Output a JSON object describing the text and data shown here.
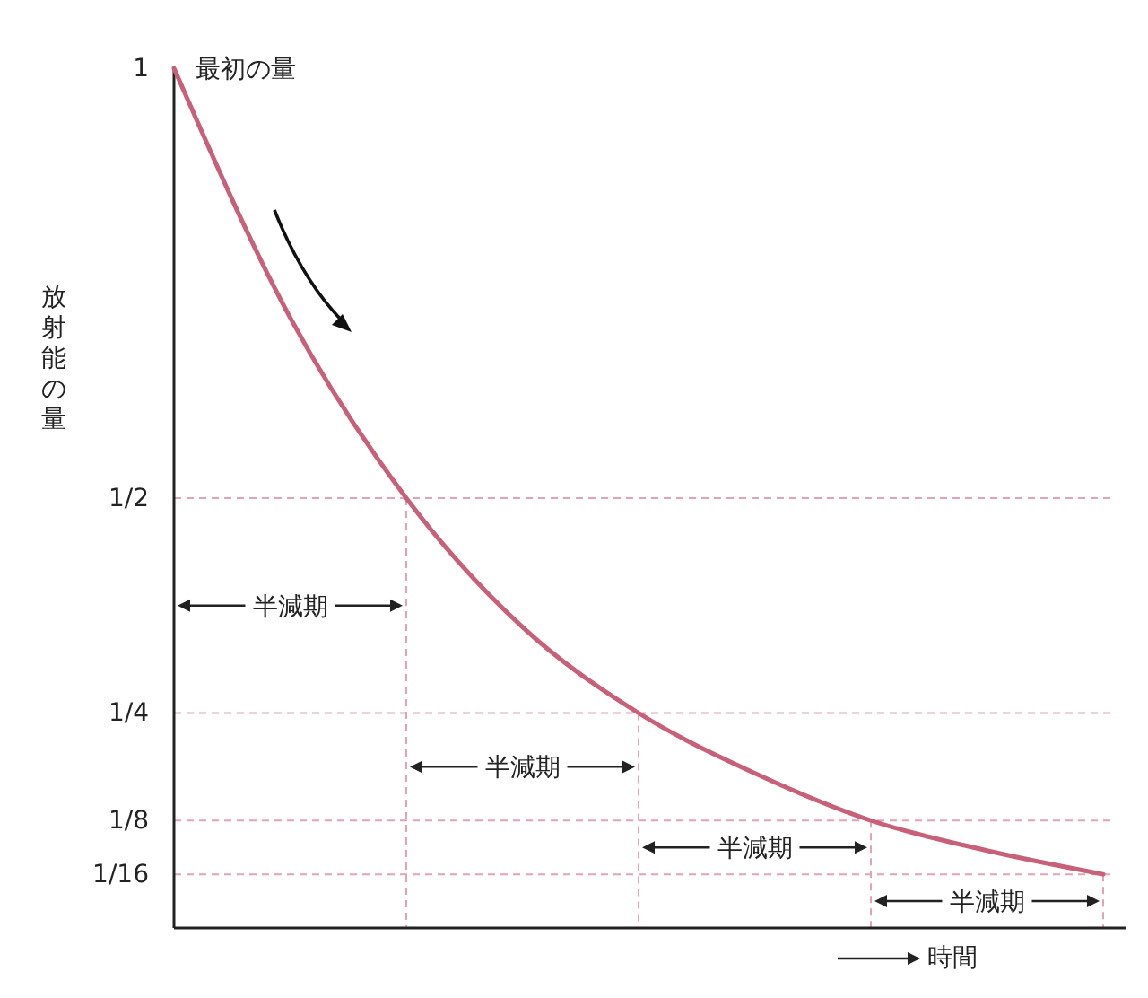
{
  "chart_data": {
    "type": "line",
    "ylabel": "放射能の量",
    "xlabel": "時間",
    "categories": [
      null,
      null,
      null,
      null,
      null,
      null,
      null,
      null,
      null
    ],
    "series": [
      {
        "color": "#c8607a",
        "values": [
          1,
          0.71,
          0.5,
          0.35,
          0.25,
          0.18,
          0.125,
          0.09,
          0.0625
        ]
      }
    ],
    "ylim": [
      0,
      1
    ],
    "yticks": [
      {
        "value": 1,
        "label": "1"
      },
      {
        "value": 0.5,
        "label": "1/2"
      },
      {
        "value": 0.25,
        "label": "1/4"
      },
      {
        "value": 0.125,
        "label": "1/8"
      },
      {
        "value": 0.0625,
        "label": "1/16"
      }
    ],
    "tick_labels": "y",
    "marker": "none",
    "line_style": "solid",
    "ref_lines": [
      {
        "axis": "y",
        "value": 0.5,
        "color": "#e3a3b3",
        "line_style": "dashed"
      },
      {
        "axis": "y",
        "value": 0.25,
        "color": "#e3a3b3",
        "line_style": "dashed"
      },
      {
        "axis": "y",
        "value": 0.125,
        "color": "#e3a3b3",
        "line_style": "dashed"
      },
      {
        "axis": "y",
        "value": 0.0625,
        "color": "#e3a3b3",
        "line_style": "dashed"
      }
    ],
    "annotations": [
      "最初の量",
      "半減期",
      "半減期",
      "半減期",
      "半減期"
    ]
  }
}
